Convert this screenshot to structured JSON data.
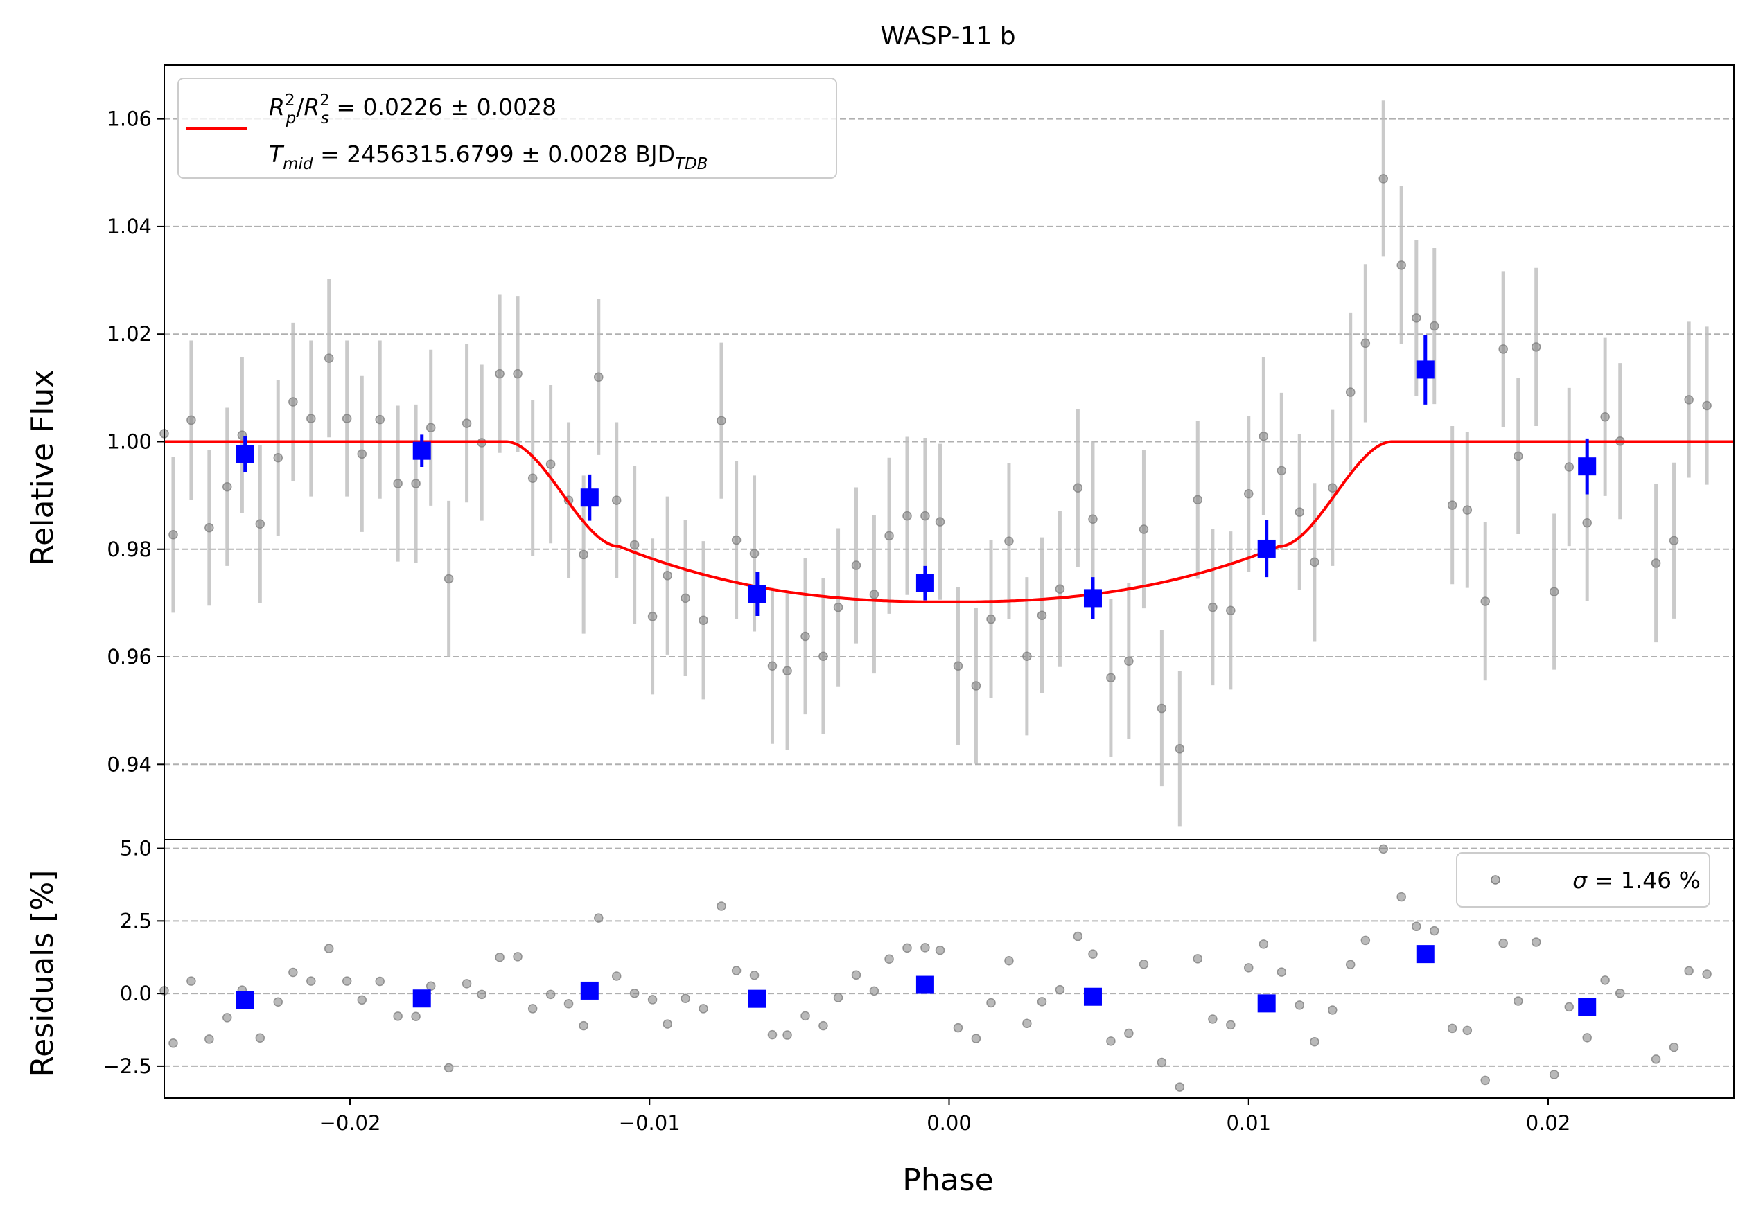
{
  "chart_data": {
    "type": "scatter",
    "title": "WASP-11 b",
    "xlabel": "Phase",
    "xlim": [
      -0.0262,
      0.0262
    ],
    "x_ticks": [
      -0.02,
      -0.01,
      0.0,
      0.01,
      0.02
    ],
    "x_tick_labels": [
      "−0.02",
      "−0.01",
      "0.00",
      "0.01",
      "0.02"
    ],
    "grid": "horizontal dashed",
    "main_panel": {
      "ylabel": "Relative Flux",
      "ylim": [
        0.926,
        1.07
      ],
      "y_ticks": [
        0.94,
        0.96,
        0.98,
        1.0,
        1.02,
        1.04,
        1.06
      ],
      "y_tick_labels": [
        "0.94",
        "0.96",
        "0.98",
        "1.00",
        "1.02",
        "1.04",
        "1.06"
      ],
      "legend": {
        "placement": "upper-left",
        "line1_prefix": " = 0.0226 ± 0.0028",
        "line2_prefix": " = 2456315.6799 ± 0.0028 BJD",
        "rp": "R",
        "rp_sup": "2",
        "rp_sub": "p",
        "rs": "R",
        "rs_sup": "2",
        "rs_sub": "s",
        "tmid": "T",
        "tmid_sub": "mid",
        "bjd_sub": "TDB"
      },
      "raw_data": {
        "color": "#808080",
        "points": [
          [
            -0.0262,
            1.0015,
            0.0
          ],
          [
            -0.0259,
            0.9827,
            0.0145
          ],
          [
            -0.0253,
            1.004,
            0.0148
          ],
          [
            -0.0247,
            0.984,
            0.0145
          ],
          [
            -0.0241,
            0.9916,
            0.0147
          ],
          [
            -0.0236,
            1.0012,
            0.0145
          ],
          [
            -0.023,
            0.9847,
            0.0147
          ],
          [
            -0.0224,
            0.997,
            0.0145
          ],
          [
            -0.0219,
            1.0074,
            0.0147
          ],
          [
            -0.0213,
            1.0043,
            0.0145
          ],
          [
            -0.0207,
            1.0155,
            0.0147
          ],
          [
            -0.0201,
            1.0043,
            0.0145
          ],
          [
            -0.0196,
            0.9977,
            0.0145
          ],
          [
            -0.019,
            1.0041,
            0.0147
          ],
          [
            -0.0184,
            0.9922,
            0.0145
          ],
          [
            -0.0178,
            0.9922,
            0.0147
          ],
          [
            -0.0173,
            1.0026,
            0.0145
          ],
          [
            -0.0167,
            0.9745,
            0.0145
          ],
          [
            -0.0161,
            1.0034,
            0.0147
          ],
          [
            -0.0156,
            0.9998,
            0.0145
          ],
          [
            -0.015,
            1.0126,
            0.0147
          ],
          [
            -0.0144,
            1.0126,
            0.0145
          ],
          [
            -0.0139,
            0.9932,
            0.0145
          ],
          [
            -0.0133,
            0.9958,
            0.0147
          ],
          [
            -0.0127,
            0.9891,
            0.0145
          ],
          [
            -0.0122,
            0.979,
            0.0147
          ],
          [
            -0.0117,
            1.012,
            0.0145
          ],
          [
            -0.0111,
            0.9891,
            0.0145
          ],
          [
            -0.0105,
            0.9808,
            0.0147
          ],
          [
            -0.0099,
            0.9675,
            0.0145
          ],
          [
            -0.0094,
            0.9751,
            0.0147
          ],
          [
            -0.0088,
            0.9709,
            0.0145
          ],
          [
            -0.0082,
            0.9668,
            0.0147
          ],
          [
            -0.0076,
            1.0039,
            0.0145
          ],
          [
            -0.0071,
            0.9817,
            0.0147
          ],
          [
            -0.0065,
            0.9792,
            0.0145
          ],
          [
            -0.0059,
            0.9583,
            0.0145
          ],
          [
            -0.0054,
            0.9574,
            0.0147
          ],
          [
            -0.0048,
            0.9638,
            0.0145
          ],
          [
            -0.0042,
            0.9601,
            0.0145
          ],
          [
            -0.0037,
            0.9692,
            0.0147
          ],
          [
            -0.0031,
            0.977,
            0.0145
          ],
          [
            -0.0025,
            0.9716,
            0.0147
          ],
          [
            -0.002,
            0.9825,
            0.0145
          ],
          [
            -0.0014,
            0.9862,
            0.0147
          ],
          [
            -0.0008,
            0.9862,
            0.0145
          ],
          [
            -0.0003,
            0.9851,
            0.0145
          ],
          [
            0.0003,
            0.9583,
            0.0147
          ],
          [
            0.0009,
            0.9546,
            0.0145
          ],
          [
            0.0014,
            0.967,
            0.0147
          ],
          [
            0.002,
            0.9815,
            0.0145
          ],
          [
            0.0026,
            0.9601,
            0.0147
          ],
          [
            0.0031,
            0.9677,
            0.0145
          ],
          [
            0.0037,
            0.9726,
            0.0145
          ],
          [
            0.0043,
            0.9914,
            0.0147
          ],
          [
            0.0048,
            0.9856,
            0.0145
          ],
          [
            0.0054,
            0.9561,
            0.0147
          ],
          [
            0.006,
            0.9592,
            0.0145
          ],
          [
            0.0065,
            0.9837,
            0.0147
          ],
          [
            0.0071,
            0.9504,
            0.0145
          ],
          [
            0.0077,
            0.9429,
            0.0145
          ],
          [
            0.0083,
            0.9892,
            0.0147
          ],
          [
            0.0088,
            0.9692,
            0.0145
          ],
          [
            0.0094,
            0.9686,
            0.0147
          ],
          [
            0.01,
            0.9903,
            0.0145
          ],
          [
            0.0105,
            1.001,
            0.0147
          ],
          [
            0.0111,
            0.9946,
            0.0145
          ],
          [
            0.0117,
            0.9869,
            0.0145
          ],
          [
            0.0122,
            0.9776,
            0.0147
          ],
          [
            0.0128,
            0.9914,
            0.0145
          ],
          [
            0.0134,
            1.0092,
            0.0147
          ],
          [
            0.0139,
            1.0183,
            0.0147
          ],
          [
            0.0145,
            1.0489,
            0.0145
          ],
          [
            0.0151,
            1.0328,
            0.0147
          ],
          [
            0.0156,
            1.023,
            0.0145
          ],
          [
            0.0162,
            1.0215,
            0.0145
          ],
          [
            0.0168,
            0.9882,
            0.0147
          ],
          [
            0.0173,
            0.9873,
            0.0145
          ],
          [
            0.0179,
            0.9703,
            0.0147
          ],
          [
            0.0185,
            1.0172,
            0.0145
          ],
          [
            0.019,
            0.9973,
            0.0145
          ],
          [
            0.0196,
            1.0176,
            0.0147
          ],
          [
            0.0202,
            0.9721,
            0.0145
          ],
          [
            0.0207,
            0.9953,
            0.0147
          ],
          [
            0.0213,
            0.9849,
            0.0145
          ],
          [
            0.0219,
            1.0046,
            0.0147
          ],
          [
            0.0224,
            1.0001,
            0.0145
          ],
          [
            0.0236,
            0.9774,
            0.0147
          ],
          [
            0.0242,
            0.9816,
            0.0145
          ],
          [
            0.0247,
            1.0078,
            0.0145
          ],
          [
            0.0253,
            1.0067,
            0.0147
          ]
        ]
      },
      "binned_data": {
        "color": "#0000ff",
        "points": [
          [
            -0.0235,
            0.9977,
            0.0033
          ],
          [
            -0.0176,
            0.9983,
            0.003
          ],
          [
            -0.012,
            0.9896,
            0.0043
          ],
          [
            -0.0064,
            0.9717,
            0.0041
          ],
          [
            -0.0008,
            0.9737,
            0.0032
          ],
          [
            0.0048,
            0.9709,
            0.0039
          ],
          [
            0.0106,
            0.9801,
            0.0053
          ],
          [
            0.0159,
            1.0134,
            0.0065
          ],
          [
            0.0213,
            0.9954,
            0.0052
          ]
        ]
      },
      "model": {
        "color": "#ff0000",
        "rp2_rs2": 0.0226,
        "t_mid": 2456315.6799,
        "ingress_start": -0.0148,
        "ingress_end": -0.011,
        "egress_start": 0.011,
        "egress_end": 0.0148,
        "center_depth": 0.0298,
        "bottom_edge_depth": 0.0195
      }
    },
    "residual_panel": {
      "ylabel": "Residuals [%]",
      "ylim": [
        -3.6,
        5.3
      ],
      "y_ticks": [
        -2.5,
        0.0,
        2.5,
        5.0
      ],
      "y_tick_labels": [
        "−2.5",
        "0.0",
        "2.5",
        "5.0"
      ],
      "legend": {
        "placement": "upper-right",
        "sigma_symbol": "σ",
        "sigma_text": " = 1.46 %"
      },
      "raw_residuals": [
        [
          -0.0262,
          0.1
        ],
        [
          -0.0259,
          -1.71
        ],
        [
          -0.0253,
          0.43
        ],
        [
          -0.0247,
          -1.57
        ],
        [
          -0.0241,
          -0.83
        ],
        [
          -0.0236,
          0.12
        ],
        [
          -0.023,
          -1.53
        ],
        [
          -0.0224,
          -0.29
        ],
        [
          -0.0219,
          0.73
        ],
        [
          -0.0213,
          0.43
        ],
        [
          -0.0207,
          1.55
        ],
        [
          -0.0201,
          0.43
        ],
        [
          -0.0196,
          -0.22
        ],
        [
          -0.019,
          0.42
        ],
        [
          -0.0184,
          -0.78
        ],
        [
          -0.0178,
          -0.79
        ],
        [
          -0.0173,
          0.26
        ],
        [
          -0.0167,
          -2.56
        ],
        [
          -0.0161,
          0.34
        ],
        [
          -0.0156,
          -0.03
        ],
        [
          -0.015,
          1.25
        ],
        [
          -0.0144,
          1.27
        ],
        [
          -0.0139,
          -0.52
        ],
        [
          -0.0133,
          -0.03
        ],
        [
          -0.0127,
          -0.35
        ],
        [
          -0.0122,
          -1.11
        ],
        [
          -0.0117,
          2.6
        ],
        [
          -0.0111,
          0.6
        ],
        [
          -0.0105,
          0.01
        ],
        [
          -0.0099,
          -0.21
        ],
        [
          -0.0094,
          -1.05
        ],
        [
          -0.0088,
          -0.17
        ],
        [
          -0.0082,
          -0.52
        ],
        [
          -0.0076,
          3.01
        ],
        [
          -0.0071,
          0.79
        ],
        [
          -0.0065,
          0.63
        ],
        [
          -0.0059,
          -1.42
        ],
        [
          -0.0054,
          -1.43
        ],
        [
          -0.0048,
          -0.77
        ],
        [
          -0.0042,
          -1.11
        ],
        [
          -0.0037,
          -0.14
        ],
        [
          -0.0031,
          0.64
        ],
        [
          -0.0025,
          0.09
        ],
        [
          -0.002,
          1.19
        ],
        [
          -0.0014,
          1.57
        ],
        [
          -0.0008,
          1.58
        ],
        [
          -0.0003,
          1.49
        ],
        [
          0.0003,
          -1.18
        ],
        [
          0.0009,
          -1.55
        ],
        [
          0.0014,
          -0.32
        ],
        [
          0.002,
          1.13
        ],
        [
          0.0026,
          -1.03
        ],
        [
          0.0031,
          -0.28
        ],
        [
          0.0037,
          0.13
        ],
        [
          0.0043,
          1.97
        ],
        [
          0.0048,
          1.36
        ],
        [
          0.0054,
          -1.64
        ],
        [
          0.006,
          -1.37
        ],
        [
          0.0065,
          1.01
        ],
        [
          0.0071,
          -2.37
        ],
        [
          0.0077,
          -3.22
        ],
        [
          0.0083,
          1.2
        ],
        [
          0.0088,
          -0.88
        ],
        [
          0.0094,
          -1.08
        ],
        [
          0.01,
          0.89
        ],
        [
          0.0105,
          1.7
        ],
        [
          0.0111,
          0.74
        ],
        [
          0.0117,
          -0.4
        ],
        [
          0.0122,
          -1.66
        ],
        [
          0.0128,
          -0.57
        ],
        [
          0.0134,
          1.0
        ],
        [
          0.0139,
          1.83
        ],
        [
          0.0145,
          4.98
        ],
        [
          0.0151,
          3.33
        ],
        [
          0.0156,
          2.31
        ],
        [
          0.0162,
          2.16
        ],
        [
          0.0168,
          -1.2
        ],
        [
          0.0173,
          -1.27
        ],
        [
          0.0179,
          -2.99
        ],
        [
          0.0185,
          1.73
        ],
        [
          0.019,
          -0.26
        ],
        [
          0.0196,
          1.77
        ],
        [
          0.0202,
          -2.79
        ],
        [
          0.0207,
          -0.46
        ],
        [
          0.0213,
          -1.52
        ],
        [
          0.0219,
          0.46
        ],
        [
          0.0224,
          0.01
        ],
        [
          0.0236,
          -2.26
        ],
        [
          0.0242,
          -1.85
        ],
        [
          0.0247,
          0.78
        ],
        [
          0.0253,
          0.67
        ]
      ],
      "binned_residuals": [
        [
          -0.0235,
          -0.23
        ],
        [
          -0.0176,
          -0.17
        ],
        [
          -0.012,
          0.1
        ],
        [
          -0.0064,
          -0.18
        ],
        [
          -0.0008,
          0.3
        ],
        [
          0.0048,
          -0.11
        ],
        [
          0.0106,
          -0.34
        ],
        [
          0.0159,
          1.36
        ],
        [
          0.0213,
          -0.46
        ]
      ]
    }
  }
}
